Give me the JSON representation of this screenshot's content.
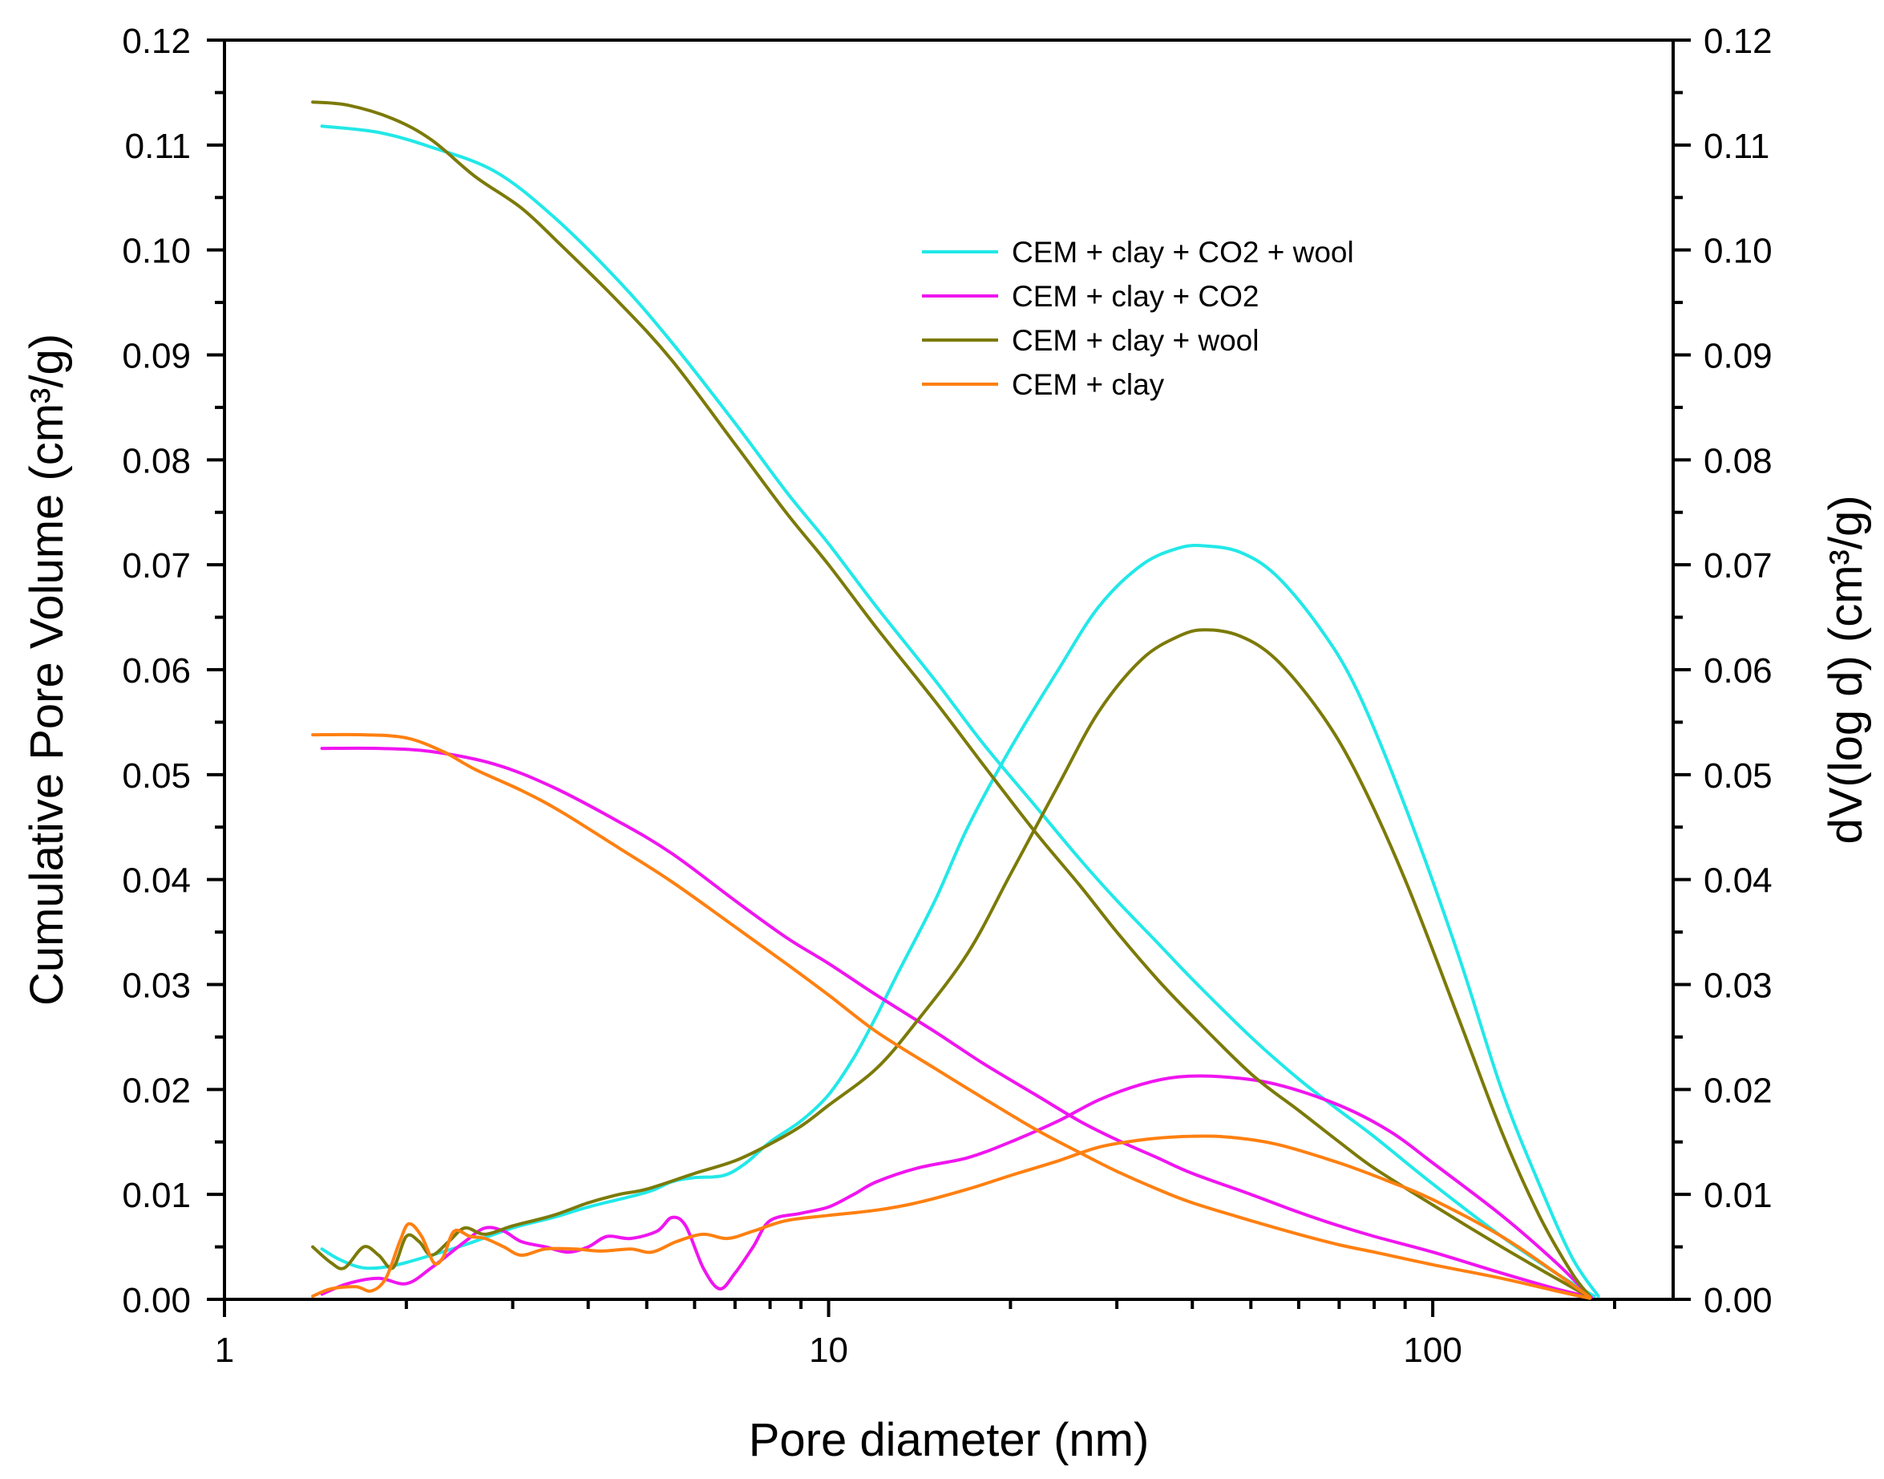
{
  "chart_data": {
    "type": "line",
    "title": "",
    "xlabel": "Pore diameter (nm)",
    "ylabel_left": "Cumulative Pore Volume (cm³/g)",
    "ylabel_right": "dV(log d) (cm³/g)",
    "xscale": "log",
    "xlim": [
      1,
      250
    ],
    "ylim": [
      0,
      0.12
    ],
    "ylim_right": [
      0,
      0.12
    ],
    "x_ticks": [
      {
        "value": 1,
        "label": "1"
      },
      {
        "value": 10,
        "label": "10"
      },
      {
        "value": 100,
        "label": "100"
      }
    ],
    "y_ticks": [
      {
        "value": 0.0,
        "label": "0.00"
      },
      {
        "value": 0.01,
        "label": "0.01"
      },
      {
        "value": 0.02,
        "label": "0.02"
      },
      {
        "value": 0.03,
        "label": "0.03"
      },
      {
        "value": 0.04,
        "label": "0.04"
      },
      {
        "value": 0.05,
        "label": "0.05"
      },
      {
        "value": 0.06,
        "label": "0.06"
      },
      {
        "value": 0.07,
        "label": "0.07"
      },
      {
        "value": 0.08,
        "label": "0.08"
      },
      {
        "value": 0.09,
        "label": "0.09"
      },
      {
        "value": 0.1,
        "label": "0.10"
      },
      {
        "value": 0.11,
        "label": "0.11"
      },
      {
        "value": 0.12,
        "label": "0.12"
      }
    ],
    "legend_position": "upper-center",
    "series": [
      {
        "name": "CEM + clay + CO2 + wool",
        "color": "#22e8e8",
        "kind": "cumulative",
        "points": [
          [
            1.45,
            0.1118
          ],
          [
            1.8,
            0.1112
          ],
          [
            2.2,
            0.1098
          ],
          [
            2.8,
            0.1075
          ],
          [
            3.5,
            0.1032
          ],
          [
            4.5,
            0.097
          ],
          [
            5.5,
            0.0912
          ],
          [
            7,
            0.0835
          ],
          [
            8.5,
            0.077
          ],
          [
            10,
            0.072
          ],
          [
            12,
            0.066
          ],
          [
            15,
            0.059
          ],
          [
            18,
            0.053
          ],
          [
            22,
            0.047
          ],
          [
            26,
            0.042
          ],
          [
            30,
            0.038
          ],
          [
            35,
            0.034
          ],
          [
            40,
            0.0305
          ],
          [
            50,
            0.025
          ],
          [
            60,
            0.021
          ],
          [
            70,
            0.018
          ],
          [
            80,
            0.0155
          ],
          [
            100,
            0.011
          ],
          [
            130,
            0.006
          ],
          [
            160,
            0.0025
          ],
          [
            185,
            0.0003
          ]
        ]
      },
      {
        "name": "CEM + clay + CO2 + wool",
        "color": "#22e8e8",
        "kind": "differential",
        "points": [
          [
            1.45,
            0.0048
          ],
          [
            1.55,
            0.0038
          ],
          [
            1.7,
            0.003
          ],
          [
            1.9,
            0.0032
          ],
          [
            2.2,
            0.0042
          ],
          [
            2.5,
            0.0052
          ],
          [
            3,
            0.0068
          ],
          [
            3.5,
            0.0078
          ],
          [
            4,
            0.0088
          ],
          [
            5,
            0.0102
          ],
          [
            5.5,
            0.0112
          ],
          [
            6,
            0.0116
          ],
          [
            6.7,
            0.0118
          ],
          [
            7.3,
            0.013
          ],
          [
            8,
            0.015
          ],
          [
            9,
            0.017
          ],
          [
            10,
            0.0195
          ],
          [
            11,
            0.023
          ],
          [
            12,
            0.027
          ],
          [
            13,
            0.031
          ],
          [
            15,
            0.038
          ],
          [
            17,
            0.045
          ],
          [
            20,
            0.0525
          ],
          [
            24,
            0.06
          ],
          [
            28,
            0.066
          ],
          [
            33,
            0.07
          ],
          [
            38,
            0.0716
          ],
          [
            42,
            0.0718
          ],
          [
            48,
            0.0712
          ],
          [
            55,
            0.069
          ],
          [
            65,
            0.064
          ],
          [
            75,
            0.058
          ],
          [
            90,
            0.047
          ],
          [
            110,
            0.033
          ],
          [
            130,
            0.02
          ],
          [
            150,
            0.011
          ],
          [
            170,
            0.004
          ],
          [
            188,
            0.0003
          ]
        ]
      },
      {
        "name": "CEM + clay + CO2",
        "color": "#f015f0",
        "kind": "cumulative",
        "points": [
          [
            1.45,
            0.0525
          ],
          [
            1.8,
            0.0525
          ],
          [
            2.2,
            0.0522
          ],
          [
            2.8,
            0.051
          ],
          [
            3.5,
            0.0488
          ],
          [
            4.5,
            0.0455
          ],
          [
            5.5,
            0.0425
          ],
          [
            7,
            0.038
          ],
          [
            8.5,
            0.0345
          ],
          [
            10,
            0.032
          ],
          [
            12,
            0.029
          ],
          [
            15,
            0.0255
          ],
          [
            18,
            0.0225
          ],
          [
            22,
            0.0195
          ],
          [
            26,
            0.017
          ],
          [
            30,
            0.0152
          ],
          [
            35,
            0.0135
          ],
          [
            40,
            0.012
          ],
          [
            50,
            0.01
          ],
          [
            60,
            0.0083
          ],
          [
            70,
            0.007
          ],
          [
            80,
            0.006
          ],
          [
            100,
            0.0045
          ],
          [
            130,
            0.0025
          ],
          [
            160,
            0.001
          ],
          [
            183,
            0.0002
          ]
        ]
      },
      {
        "name": "CEM + clay + CO2",
        "color": "#f015f0",
        "kind": "differential",
        "points": [
          [
            1.45,
            0.0005
          ],
          [
            1.6,
            0.0015
          ],
          [
            1.8,
            0.002
          ],
          [
            2.0,
            0.0015
          ],
          [
            2.2,
            0.003
          ],
          [
            2.5,
            0.0055
          ],
          [
            2.7,
            0.0068
          ],
          [
            2.9,
            0.0065
          ],
          [
            3.1,
            0.0055
          ],
          [
            3.4,
            0.005
          ],
          [
            3.7,
            0.0045
          ],
          [
            4,
            0.005
          ],
          [
            4.3,
            0.006
          ],
          [
            4.7,
            0.0058
          ],
          [
            5.2,
            0.0065
          ],
          [
            5.5,
            0.0078
          ],
          [
            5.8,
            0.007
          ],
          [
            6.2,
            0.003
          ],
          [
            6.6,
            0.001
          ],
          [
            7,
            0.0025
          ],
          [
            7.5,
            0.005
          ],
          [
            8,
            0.0075
          ],
          [
            9,
            0.0082
          ],
          [
            10,
            0.0088
          ],
          [
            11,
            0.01
          ],
          [
            12,
            0.0112
          ],
          [
            14,
            0.0125
          ],
          [
            17,
            0.0135
          ],
          [
            20,
            0.015
          ],
          [
            24,
            0.017
          ],
          [
            28,
            0.019
          ],
          [
            33,
            0.0205
          ],
          [
            38,
            0.0212
          ],
          [
            45,
            0.0212
          ],
          [
            55,
            0.0205
          ],
          [
            70,
            0.0185
          ],
          [
            85,
            0.016
          ],
          [
            100,
            0.013
          ],
          [
            130,
            0.008
          ],
          [
            160,
            0.0035
          ],
          [
            182,
            0.0003
          ]
        ]
      },
      {
        "name": "CEM + clay + wool",
        "color": "#7c7a08",
        "kind": "cumulative",
        "points": [
          [
            1.4,
            0.1141
          ],
          [
            1.6,
            0.1138
          ],
          [
            1.9,
            0.1125
          ],
          [
            2.2,
            0.1105
          ],
          [
            2.6,
            0.107
          ],
          [
            3.1,
            0.104
          ],
          [
            3.6,
            0.1005
          ],
          [
            4.5,
            0.095
          ],
          [
            5.5,
            0.0895
          ],
          [
            7,
            0.0815
          ],
          [
            8.5,
            0.075
          ],
          [
            10,
            0.07
          ],
          [
            12,
            0.064
          ],
          [
            15,
            0.057
          ],
          [
            18,
            0.051
          ],
          [
            22,
            0.0445
          ],
          [
            26,
            0.0395
          ],
          [
            30,
            0.035
          ],
          [
            35,
            0.0305
          ],
          [
            40,
            0.027
          ],
          [
            50,
            0.0215
          ],
          [
            60,
            0.018
          ],
          [
            70,
            0.015
          ],
          [
            80,
            0.0125
          ],
          [
            100,
            0.009
          ],
          [
            130,
            0.005
          ],
          [
            160,
            0.002
          ],
          [
            182,
            0.0002
          ]
        ]
      },
      {
        "name": "CEM + clay + wool",
        "color": "#7c7a08",
        "kind": "differential",
        "points": [
          [
            1.4,
            0.005
          ],
          [
            1.5,
            0.0035
          ],
          [
            1.58,
            0.003
          ],
          [
            1.7,
            0.005
          ],
          [
            1.8,
            0.0042
          ],
          [
            1.9,
            0.003
          ],
          [
            2.0,
            0.006
          ],
          [
            2.1,
            0.0055
          ],
          [
            2.2,
            0.0042
          ],
          [
            2.35,
            0.0055
          ],
          [
            2.5,
            0.0068
          ],
          [
            2.7,
            0.0062
          ],
          [
            3,
            0.007
          ],
          [
            3.5,
            0.008
          ],
          [
            4,
            0.0092
          ],
          [
            4.5,
            0.01
          ],
          [
            5,
            0.0105
          ],
          [
            6,
            0.012
          ],
          [
            7,
            0.0132
          ],
          [
            8,
            0.0148
          ],
          [
            9,
            0.0165
          ],
          [
            10,
            0.0185
          ],
          [
            12,
            0.022
          ],
          [
            14,
            0.0265
          ],
          [
            17,
            0.033
          ],
          [
            20,
            0.0405
          ],
          [
            24,
            0.049
          ],
          [
            28,
            0.056
          ],
          [
            33,
            0.061
          ],
          [
            38,
            0.0632
          ],
          [
            42,
            0.0638
          ],
          [
            48,
            0.0632
          ],
          [
            55,
            0.061
          ],
          [
            65,
            0.056
          ],
          [
            75,
            0.05
          ],
          [
            90,
            0.04
          ],
          [
            110,
            0.027
          ],
          [
            130,
            0.016
          ],
          [
            150,
            0.008
          ],
          [
            170,
            0.0025
          ],
          [
            182,
            0.0003
          ]
        ]
      },
      {
        "name": "CEM + clay",
        "color": "#ff8011",
        "kind": "cumulative",
        "points": [
          [
            1.4,
            0.0538
          ],
          [
            1.7,
            0.0538
          ],
          [
            2.0,
            0.0535
          ],
          [
            2.3,
            0.0522
          ],
          [
            2.6,
            0.0505
          ],
          [
            3.1,
            0.0485
          ],
          [
            3.6,
            0.0465
          ],
          [
            4.5,
            0.043
          ],
          [
            5.5,
            0.0398
          ],
          [
            7,
            0.0355
          ],
          [
            8.5,
            0.032
          ],
          [
            10,
            0.029
          ],
          [
            12,
            0.0255
          ],
          [
            15,
            0.022
          ],
          [
            18,
            0.0192
          ],
          [
            22,
            0.0162
          ],
          [
            26,
            0.014
          ],
          [
            30,
            0.0122
          ],
          [
            35,
            0.0105
          ],
          [
            40,
            0.0092
          ],
          [
            50,
            0.0075
          ],
          [
            60,
            0.0062
          ],
          [
            70,
            0.0052
          ],
          [
            80,
            0.0045
          ],
          [
            100,
            0.0033
          ],
          [
            130,
            0.002
          ],
          [
            160,
            0.0008
          ],
          [
            182,
            0.0001
          ]
        ]
      },
      {
        "name": "CEM + clay",
        "color": "#ff8011",
        "kind": "differential",
        "points": [
          [
            1.4,
            0.0003
          ],
          [
            1.5,
            0.001
          ],
          [
            1.65,
            0.0012
          ],
          [
            1.75,
            0.0008
          ],
          [
            1.85,
            0.002
          ],
          [
            1.95,
            0.0055
          ],
          [
            2.02,
            0.0072
          ],
          [
            2.12,
            0.006
          ],
          [
            2.22,
            0.0035
          ],
          [
            2.3,
            0.004
          ],
          [
            2.4,
            0.0065
          ],
          [
            2.55,
            0.006
          ],
          [
            2.7,
            0.0058
          ],
          [
            2.9,
            0.005
          ],
          [
            3.1,
            0.0042
          ],
          [
            3.4,
            0.0048
          ],
          [
            3.8,
            0.0048
          ],
          [
            4.2,
            0.0046
          ],
          [
            4.7,
            0.0048
          ],
          [
            5.1,
            0.0045
          ],
          [
            5.6,
            0.0055
          ],
          [
            6.2,
            0.0062
          ],
          [
            6.8,
            0.0058
          ],
          [
            7.5,
            0.0065
          ],
          [
            8.5,
            0.0075
          ],
          [
            10,
            0.008
          ],
          [
            12,
            0.0085
          ],
          [
            14,
            0.0092
          ],
          [
            17,
            0.0105
          ],
          [
            20,
            0.0118
          ],
          [
            24,
            0.0132
          ],
          [
            28,
            0.0145
          ],
          [
            33,
            0.0152
          ],
          [
            38,
            0.0155
          ],
          [
            45,
            0.0155
          ],
          [
            55,
            0.0148
          ],
          [
            70,
            0.013
          ],
          [
            85,
            0.0112
          ],
          [
            100,
            0.0095
          ],
          [
            130,
            0.006
          ],
          [
            160,
            0.0025
          ],
          [
            182,
            0.0002
          ]
        ]
      }
    ]
  },
  "legend": {
    "items": [
      {
        "label": "CEM + clay + CO2 + wool",
        "color": "#22e8e8"
      },
      {
        "label": "CEM + clay + CO2",
        "color": "#f015f0"
      },
      {
        "label": "CEM + clay + wool",
        "color": "#7c7a08"
      },
      {
        "label": "CEM + clay",
        "color": "#ff8011"
      }
    ]
  }
}
